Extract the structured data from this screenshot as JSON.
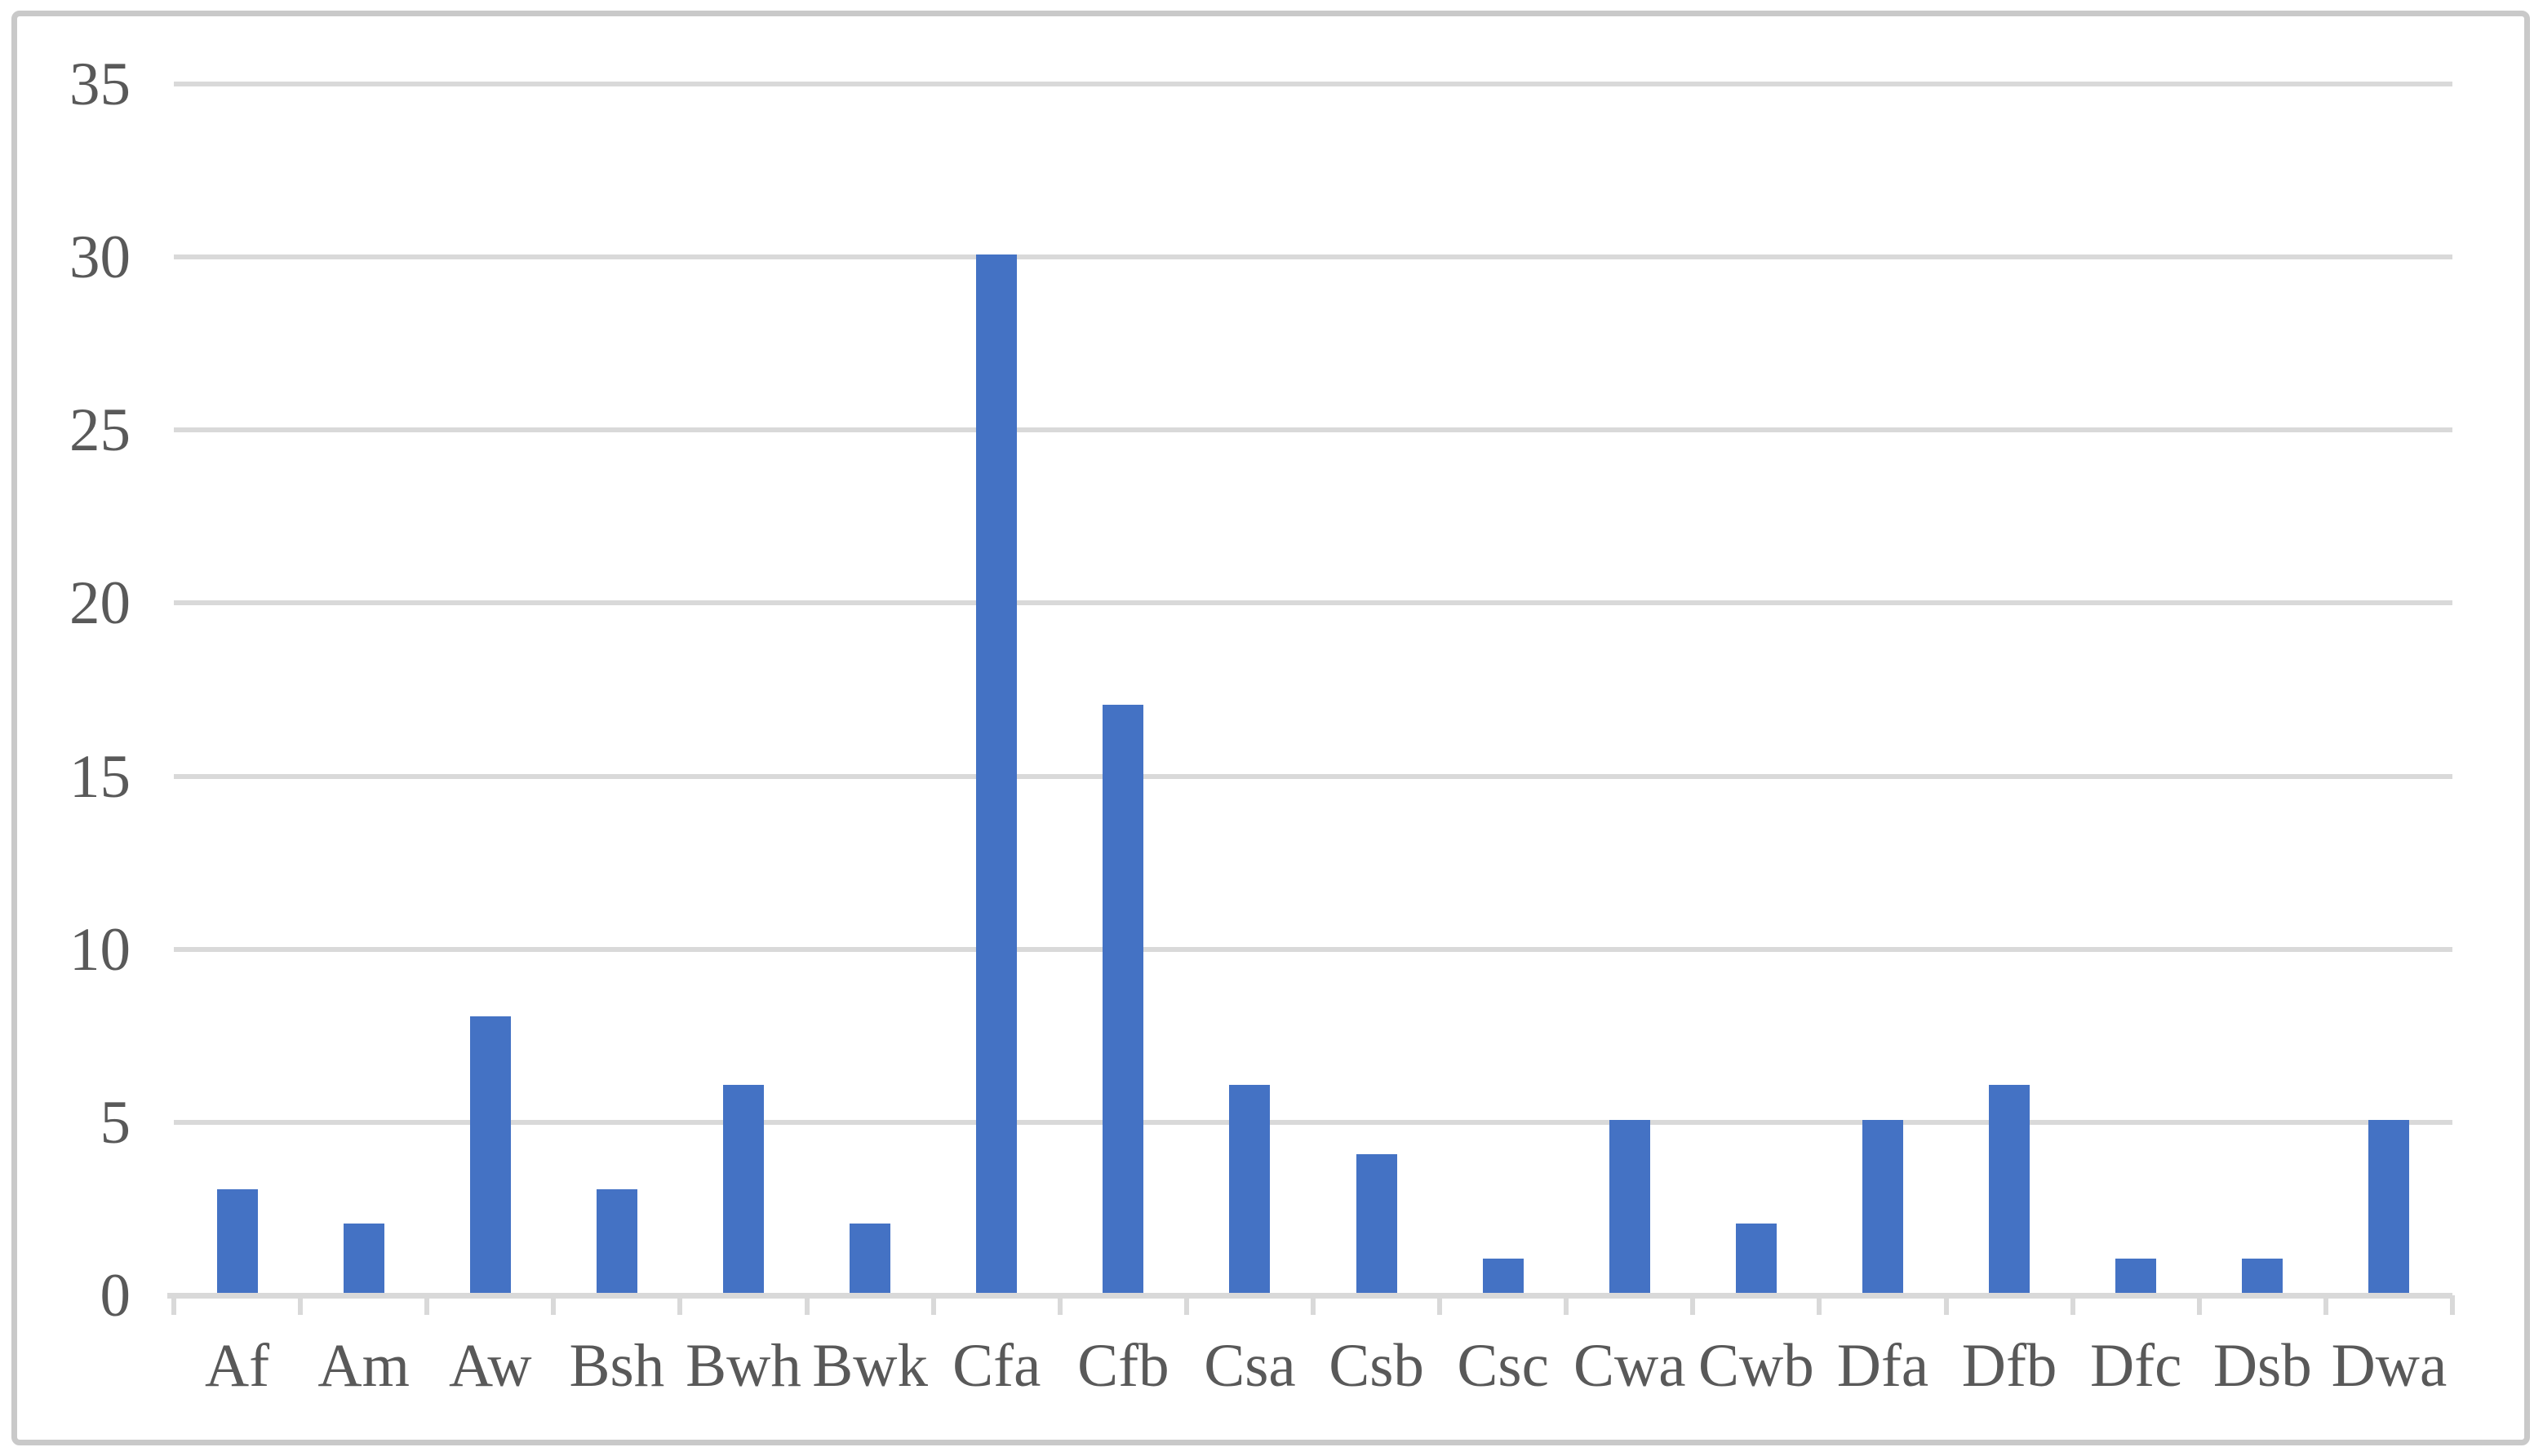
{
  "chart_data": {
    "type": "bar",
    "title": "",
    "xlabel": "",
    "ylabel": "",
    "categories": [
      "Af",
      "Am",
      "Aw",
      "Bsh",
      "Bwh",
      "Bwk",
      "Cfa",
      "Cfb",
      "Csa",
      "Csb",
      "Csc",
      "Cwa",
      "Cwb",
      "Dfa",
      "Dfb",
      "Dfc",
      "Dsb",
      "Dwa"
    ],
    "values": [
      3,
      2,
      8,
      3,
      6,
      2,
      30,
      17,
      6,
      4,
      1,
      5,
      2,
      5,
      6,
      1,
      1,
      5
    ],
    "yticks": [
      0,
      5,
      10,
      15,
      20,
      25,
      30,
      35
    ],
    "ytick_labels": [
      "0",
      "5",
      "10",
      "15",
      "20",
      "25",
      "30",
      "35"
    ],
    "ylim": [
      0,
      35
    ],
    "grid": true,
    "legend_position": "none",
    "colors": {
      "bar": "#4472c4",
      "gridline": "#d9d9d9",
      "axis_text": "#595959",
      "frame_border": "#c9c9c9",
      "background": "#ffffff"
    }
  }
}
